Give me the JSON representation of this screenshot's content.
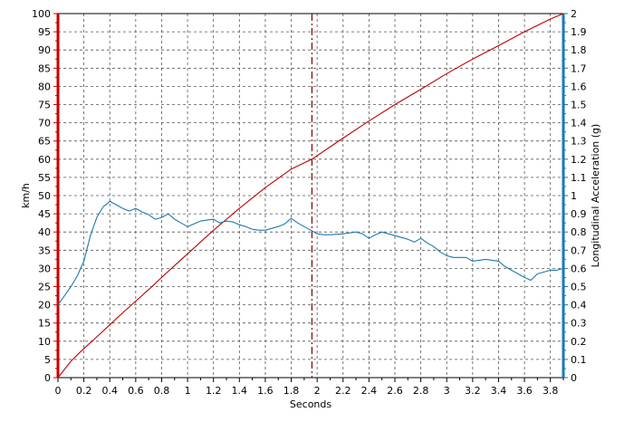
{
  "chart_data": {
    "type": "line",
    "xlabel": "Seconds",
    "ylabel_left": "km/h",
    "ylabel_right": "Longitudinal Acceleration (g)",
    "xlim": [
      0,
      3.9
    ],
    "ylim_left": [
      0,
      100
    ],
    "ylim_right": [
      0,
      2
    ],
    "x_ticks": [
      "0",
      "0.2",
      "0.4",
      "0.6",
      "0.8",
      "1",
      "1.2",
      "1.4",
      "1.6",
      "1.8",
      "2",
      "2.2",
      "2.4",
      "2.6",
      "2.8",
      "3",
      "3.2",
      "3.4",
      "3.6",
      "3.8"
    ],
    "y_left_ticks": [
      "0",
      "5",
      "10",
      "15",
      "20",
      "25",
      "30",
      "35",
      "40",
      "45",
      "50",
      "55",
      "60",
      "65",
      "70",
      "75",
      "80",
      "85",
      "90",
      "95",
      "100"
    ],
    "y_right_ticks": [
      "0",
      "0.1",
      "0.2",
      "0.3",
      "0.4",
      "0.5",
      "0.6",
      "0.7",
      "0.8",
      "0.9",
      "1",
      "1.1",
      "1.2",
      "1.3",
      "1.4",
      "1.5",
      "1.6",
      "1.7",
      "1.8",
      "1.9",
      "2"
    ],
    "grid": true,
    "cursor_x": 1.96,
    "colors": {
      "speed": "#c00000",
      "acceleration": "#1a7ab3",
      "left_axis": "#cc0000",
      "right_axis": "#1a7ab3",
      "cursor": "#7a0000"
    },
    "series": [
      {
        "axis": "left",
        "x": [
          0,
          0.1,
          0.2,
          0.3,
          0.4,
          0.5,
          0.6,
          0.7,
          0.8,
          0.9,
          1.0,
          1.2,
          1.4,
          1.6,
          1.8,
          1.96,
          2.2,
          2.4,
          2.6,
          2.8,
          3.0,
          3.2,
          3.4,
          3.6,
          3.8,
          3.9
        ],
        "values": [
          0,
          4.5,
          8,
          11.2,
          14.5,
          17.8,
          21,
          24.2,
          27.5,
          30.8,
          34,
          40.5,
          46.5,
          52.2,
          57.3,
          60,
          65.8,
          70.5,
          75,
          79.2,
          83.5,
          87.5,
          91.2,
          95,
          98.5,
          100
        ]
      },
      {
        "axis": "right",
        "x": [
          0,
          0.05,
          0.1,
          0.15,
          0.2,
          0.25,
          0.3,
          0.35,
          0.38,
          0.4,
          0.42,
          0.45,
          0.5,
          0.55,
          0.6,
          0.65,
          0.7,
          0.75,
          0.8,
          0.85,
          0.9,
          0.95,
          1.0,
          1.05,
          1.1,
          1.15,
          1.2,
          1.25,
          1.3,
          1.35,
          1.4,
          1.45,
          1.5,
          1.55,
          1.6,
          1.65,
          1.7,
          1.75,
          1.8,
          1.85,
          1.9,
          1.95,
          2.0,
          2.05,
          2.1,
          2.2,
          2.3,
          2.35,
          2.4,
          2.45,
          2.5,
          2.55,
          2.6,
          2.65,
          2.7,
          2.75,
          2.8,
          2.85,
          2.9,
          2.95,
          3.0,
          3.05,
          3.1,
          3.15,
          3.2,
          3.25,
          3.3,
          3.35,
          3.4,
          3.45,
          3.5,
          3.55,
          3.6,
          3.65,
          3.7,
          3.75,
          3.8,
          3.85,
          3.9
        ],
        "values": [
          0.4,
          0.45,
          0.5,
          0.56,
          0.64,
          0.78,
          0.88,
          0.94,
          0.955,
          0.97,
          0.96,
          0.95,
          0.93,
          0.915,
          0.93,
          0.91,
          0.895,
          0.87,
          0.88,
          0.9,
          0.87,
          0.85,
          0.83,
          0.845,
          0.86,
          0.865,
          0.87,
          0.85,
          0.86,
          0.855,
          0.84,
          0.83,
          0.815,
          0.81,
          0.81,
          0.82,
          0.83,
          0.845,
          0.875,
          0.85,
          0.83,
          0.81,
          0.79,
          0.785,
          0.785,
          0.79,
          0.8,
          0.79,
          0.765,
          0.785,
          0.8,
          0.79,
          0.78,
          0.77,
          0.76,
          0.745,
          0.765,
          0.74,
          0.72,
          0.69,
          0.67,
          0.66,
          0.66,
          0.66,
          0.64,
          0.645,
          0.65,
          0.645,
          0.64,
          0.61,
          0.59,
          0.57,
          0.55,
          0.535,
          0.57,
          0.58,
          0.59,
          0.59,
          0.6
        ]
      }
    ]
  }
}
